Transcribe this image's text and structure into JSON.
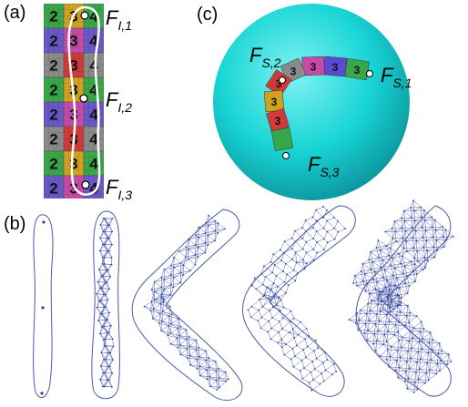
{
  "panels": {
    "a": "(a)",
    "b": "(b)",
    "c": "(c)"
  },
  "labels_a": [
    {
      "main": "F",
      "sub": "I,1"
    },
    {
      "main": "F",
      "sub": "I,2"
    },
    {
      "main": "F",
      "sub": "I,3"
    }
  ],
  "labels_c": [
    {
      "main": "F",
      "sub": "S,1"
    },
    {
      "main": "F",
      "sub": "S,2"
    },
    {
      "main": "F",
      "sub": "S,3"
    }
  ],
  "grid_a": {
    "rows": [
      [
        "2",
        "3",
        "4"
      ],
      [
        "2",
        "3",
        "4"
      ],
      [
        "2",
        "3",
        "4"
      ],
      [
        "2",
        "3",
        "4"
      ],
      [
        "2",
        "3",
        "4"
      ],
      [
        "2",
        "3",
        "4"
      ],
      [
        "2",
        "3",
        "4"
      ],
      [
        "2",
        "3",
        "4"
      ]
    ],
    "colors": [
      "#3aa64a",
      "#d23a3a",
      "#6a58c8",
      "#cfa21f",
      "#8a8a8a",
      "#c84aa8"
    ]
  },
  "strip_c": {
    "numbers": [
      "3",
      "3",
      "3",
      "3",
      "3",
      "3",
      "3"
    ],
    "colors": [
      "#3aa64a",
      "#5b4bd0",
      "#c84aa8",
      "#8a8a8a",
      "#d23a3a",
      "#cfa21f",
      "#d23a3a"
    ]
  },
  "colors": {
    "sphere": "#19d5d5",
    "outline": "#ffffff",
    "mesh": "#4a5aa8"
  }
}
